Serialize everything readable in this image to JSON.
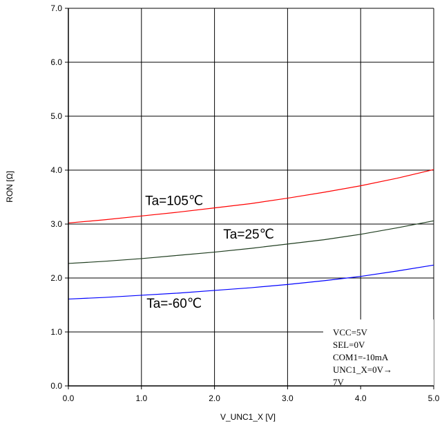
{
  "chart_data": {
    "type": "line",
    "title": "",
    "xlabel": "V_UNC1_X [V]",
    "ylabel": "RON [Ω]",
    "xlim": [
      0,
      5
    ],
    "ylim": [
      0,
      7
    ],
    "x_ticks": [
      "0.0",
      "1.0",
      "2.0",
      "3.0",
      "4.0",
      "5.0"
    ],
    "y_ticks": [
      "0.0",
      "1.0",
      "2.0",
      "3.0",
      "4.0",
      "5.0",
      "6.0",
      "7.0"
    ],
    "grid": true,
    "legend": "none",
    "series": [
      {
        "name": "Ta=105℃",
        "color": "#ff0000",
        "x": [
          0,
          0.5,
          1.0,
          1.5,
          2.0,
          2.5,
          3.0,
          3.5,
          4.0,
          4.5,
          5.0
        ],
        "y": [
          3.02,
          3.08,
          3.15,
          3.22,
          3.3,
          3.38,
          3.48,
          3.59,
          3.71,
          3.85,
          4.01
        ]
      },
      {
        "name": "Ta=25℃",
        "color": "#1f3d1f",
        "x": [
          0,
          0.5,
          1.0,
          1.5,
          2.0,
          2.5,
          3.0,
          3.5,
          4.0,
          4.5,
          5.0
        ],
        "y": [
          2.27,
          2.31,
          2.36,
          2.42,
          2.48,
          2.55,
          2.63,
          2.71,
          2.81,
          2.93,
          3.06
        ]
      },
      {
        "name": "Ta=-60℃",
        "color": "#0000ff",
        "x": [
          0,
          0.5,
          1.0,
          1.5,
          2.0,
          2.5,
          3.0,
          3.5,
          4.0,
          4.5,
          5.0
        ],
        "y": [
          1.61,
          1.64,
          1.68,
          1.72,
          1.77,
          1.82,
          1.88,
          1.95,
          2.03,
          2.13,
          2.24
        ]
      }
    ],
    "annotation_lines": [
      "VCC=5V",
      "SEL=0V",
      "COM1=-10mA",
      "UNC1_X=0V→",
      "7V"
    ]
  }
}
